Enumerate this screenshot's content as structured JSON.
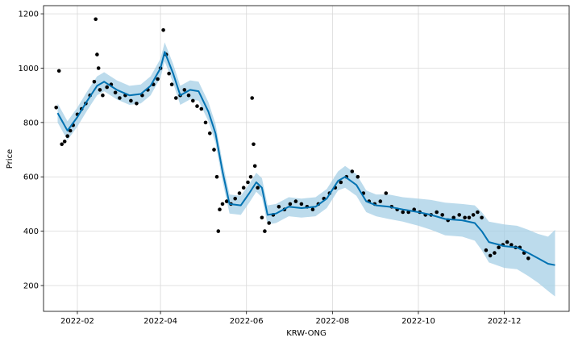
{
  "chart_data": {
    "type": "line",
    "title": "",
    "xlabel": "KRW-ONG",
    "ylabel": "Price",
    "x_tick_labels": [
      "2022-02",
      "2022-04",
      "2022-06",
      "2022-08",
      "2022-10",
      "2022-12"
    ],
    "y_tick_labels": [
      "200",
      "400",
      "600",
      "800",
      "1000",
      "1200"
    ],
    "y_ticks": [
      200,
      400,
      600,
      800,
      1000,
      1200
    ],
    "x_ticks": [
      "2022-02-01",
      "2022-04-01",
      "2022-06-01",
      "2022-08-01",
      "2022-10-01",
      "2022-12-01"
    ],
    "xlim": [
      "2022-01-08",
      "2023-01-16"
    ],
    "ylim": [
      105,
      1230
    ],
    "grid": true,
    "colors": {
      "forecast_line": "#0072b2",
      "uncertainty_band": "#a6cfe6",
      "observed_points": "#000000",
      "grid": "#d8d8d8"
    },
    "series": [
      {
        "role": "forecast",
        "x": [
          "2022-01-18",
          "2022-01-25",
          "2022-02-01",
          "2022-02-08",
          "2022-02-15",
          "2022-02-20",
          "2022-03-01",
          "2022-03-10",
          "2022-03-18",
          "2022-03-25",
          "2022-04-01",
          "2022-04-04",
          "2022-04-10",
          "2022-04-15",
          "2022-04-22",
          "2022-04-28",
          "2022-05-05",
          "2022-05-10",
          "2022-05-15",
          "2022-05-20",
          "2022-05-28",
          "2022-06-03",
          "2022-06-08",
          "2022-06-12",
          "2022-06-16",
          "2022-06-22",
          "2022-07-01",
          "2022-07-10",
          "2022-07-20",
          "2022-07-28",
          "2022-08-05",
          "2022-08-10",
          "2022-08-18",
          "2022-08-25",
          "2022-09-01",
          "2022-09-10",
          "2022-09-20",
          "2022-10-01",
          "2022-10-10",
          "2022-10-20",
          "2022-11-01",
          "2022-11-10",
          "2022-11-15",
          "2022-11-20",
          "2022-12-01",
          "2022-12-10",
          "2022-12-18",
          "2022-12-25",
          "2023-01-01",
          "2023-01-06"
        ],
        "y": [
          835,
          770,
          820,
          880,
          935,
          950,
          920,
          900,
          905,
          935,
          1000,
          1060,
          980,
          900,
          920,
          915,
          840,
          760,
          620,
          500,
          495,
          540,
          580,
          560,
          460,
          465,
          490,
          485,
          490,
          520,
          585,
          600,
          570,
          510,
          495,
          490,
          480,
          470,
          460,
          445,
          440,
          430,
          400,
          360,
          345,
          340,
          320,
          300,
          280,
          275
        ]
      },
      {
        "role": "uncertainty",
        "x": [
          "2022-01-18",
          "2022-01-25",
          "2022-02-01",
          "2022-02-08",
          "2022-02-15",
          "2022-02-20",
          "2022-03-01",
          "2022-03-10",
          "2022-03-18",
          "2022-03-25",
          "2022-04-01",
          "2022-04-04",
          "2022-04-10",
          "2022-04-15",
          "2022-04-22",
          "2022-04-28",
          "2022-05-05",
          "2022-05-10",
          "2022-05-15",
          "2022-05-20",
          "2022-05-28",
          "2022-06-03",
          "2022-06-08",
          "2022-06-12",
          "2022-06-16",
          "2022-06-22",
          "2022-07-01",
          "2022-07-10",
          "2022-07-20",
          "2022-07-28",
          "2022-08-05",
          "2022-08-10",
          "2022-08-18",
          "2022-08-25",
          "2022-09-01",
          "2022-09-10",
          "2022-09-20",
          "2022-10-01",
          "2022-10-10",
          "2022-10-20",
          "2022-11-01",
          "2022-11-10",
          "2022-11-15",
          "2022-11-20",
          "2022-12-01",
          "2022-12-10",
          "2022-12-18",
          "2022-12-25",
          "2023-01-01",
          "2023-01-06"
        ],
        "upper": [
          870,
          805,
          855,
          915,
          970,
          985,
          955,
          935,
          940,
          970,
          1035,
          1095,
          1015,
          935,
          955,
          950,
          875,
          795,
          655,
          535,
          530,
          575,
          615,
          595,
          495,
          500,
          525,
          520,
          525,
          555,
          620,
          640,
          610,
          550,
          535,
          535,
          525,
          520,
          515,
          505,
          500,
          495,
          470,
          435,
          425,
          420,
          405,
          390,
          380,
          405
        ],
        "lower": [
          800,
          735,
          785,
          845,
          900,
          915,
          885,
          865,
          870,
          900,
          965,
          1025,
          945,
          865,
          885,
          880,
          805,
          725,
          585,
          465,
          460,
          505,
          545,
          525,
          425,
          430,
          455,
          450,
          455,
          485,
          550,
          560,
          530,
          470,
          455,
          445,
          435,
          420,
          405,
          385,
          380,
          365,
          330,
          285,
          265,
          260,
          235,
          210,
          180,
          160
        ]
      },
      {
        "role": "observed",
        "x": [
          "2022-01-17",
          "2022-01-19",
          "2022-01-21",
          "2022-01-23",
          "2022-01-25",
          "2022-01-27",
          "2022-01-29",
          "2022-02-01",
          "2022-02-04",
          "2022-02-07",
          "2022-02-10",
          "2022-02-13",
          "2022-02-14",
          "2022-02-15",
          "2022-02-16",
          "2022-02-17",
          "2022-02-19",
          "2022-02-22",
          "2022-02-25",
          "2022-02-28",
          "2022-03-03",
          "2022-03-07",
          "2022-03-11",
          "2022-03-15",
          "2022-03-19",
          "2022-03-23",
          "2022-03-27",
          "2022-03-30",
          "2022-04-01",
          "2022-04-03",
          "2022-04-05",
          "2022-04-07",
          "2022-04-09",
          "2022-04-12",
          "2022-04-15",
          "2022-04-18",
          "2022-04-21",
          "2022-04-24",
          "2022-04-27",
          "2022-04-30",
          "2022-05-03",
          "2022-05-06",
          "2022-05-09",
          "2022-05-11",
          "2022-05-12",
          "2022-05-13",
          "2022-05-15",
          "2022-05-18",
          "2022-05-21",
          "2022-05-24",
          "2022-05-27",
          "2022-05-30",
          "2022-06-02",
          "2022-06-04",
          "2022-06-05",
          "2022-06-06",
          "2022-06-07",
          "2022-06-09",
          "2022-06-12",
          "2022-06-14",
          "2022-06-17",
          "2022-06-20",
          "2022-06-24",
          "2022-06-28",
          "2022-07-02",
          "2022-07-06",
          "2022-07-10",
          "2022-07-14",
          "2022-07-18",
          "2022-07-22",
          "2022-07-26",
          "2022-07-30",
          "2022-08-03",
          "2022-08-07",
          "2022-08-11",
          "2022-08-15",
          "2022-08-19",
          "2022-08-23",
          "2022-08-27",
          "2022-08-31",
          "2022-09-04",
          "2022-09-08",
          "2022-09-12",
          "2022-09-16",
          "2022-09-20",
          "2022-09-24",
          "2022-09-28",
          "2022-10-02",
          "2022-10-06",
          "2022-10-10",
          "2022-10-14",
          "2022-10-18",
          "2022-10-22",
          "2022-10-26",
          "2022-10-30",
          "2022-11-03",
          "2022-11-06",
          "2022-11-09",
          "2022-11-12",
          "2022-11-15",
          "2022-11-18",
          "2022-11-21",
          "2022-11-24",
          "2022-11-27",
          "2022-11-30",
          "2022-12-03",
          "2022-12-06",
          "2022-12-09",
          "2022-12-12",
          "2022-12-15",
          "2022-12-18"
        ],
        "y": [
          855,
          990,
          720,
          730,
          750,
          770,
          790,
          830,
          850,
          870,
          900,
          950,
          1180,
          1050,
          1000,
          920,
          900,
          930,
          940,
          910,
          890,
          900,
          880,
          870,
          900,
          920,
          940,
          960,
          1000,
          1140,
          1050,
          980,
          940,
          890,
          900,
          920,
          900,
          880,
          860,
          850,
          800,
          760,
          700,
          600,
          400,
          480,
          500,
          510,
          500,
          520,
          540,
          560,
          580,
          600,
          890,
          720,
          640,
          560,
          450,
          400,
          430,
          460,
          490,
          480,
          500,
          510,
          500,
          490,
          480,
          500,
          520,
          540,
          560,
          580,
          600,
          620,
          600,
          540,
          510,
          500,
          510,
          540,
          490,
          480,
          470,
          470,
          480,
          470,
          460,
          460,
          470,
          460,
          440,
          450,
          460,
          450,
          450,
          460,
          470,
          450,
          330,
          310,
          320,
          340,
          350,
          360,
          350,
          340,
          340,
          320,
          300
        ]
      }
    ]
  }
}
